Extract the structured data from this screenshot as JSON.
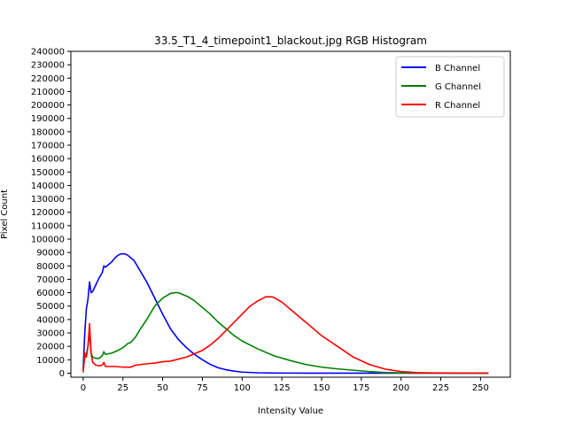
{
  "chart_data": {
    "type": "line",
    "title": "33.5_T1_4_timepoint1_blackout.jpg RGB Histogram",
    "xlabel": "Intensity Value",
    "ylabel": "Pixel Count",
    "xlim": [
      -7.75,
      268.75
    ],
    "ylim": [
      -3000,
      240000
    ],
    "xticks": [
      0,
      25,
      50,
      75,
      100,
      125,
      150,
      175,
      200,
      225,
      250
    ],
    "yticks": [
      0,
      10000,
      20000,
      30000,
      40000,
      50000,
      60000,
      70000,
      80000,
      90000,
      100000,
      110000,
      120000,
      130000,
      140000,
      150000,
      160000,
      170000,
      180000,
      190000,
      200000,
      210000,
      220000,
      230000,
      240000
    ],
    "legend_position": "upper right",
    "series": [
      {
        "name": "B Channel",
        "color": "#0000ff",
        "x": [
          0,
          1,
          2,
          3,
          4,
          5,
          6,
          8,
          10,
          12,
          13,
          14,
          16,
          18,
          20,
          22,
          24,
          26,
          28,
          30,
          32,
          35,
          38,
          40,
          45,
          50,
          55,
          60,
          65,
          70,
          75,
          80,
          85,
          90,
          95,
          100,
          110,
          120,
          130,
          140,
          150,
          175,
          200,
          225,
          255
        ],
        "values": [
          3000,
          30000,
          48000,
          55000,
          68000,
          60000,
          61000,
          66000,
          71000,
          75000,
          80000,
          79000,
          81000,
          83000,
          86000,
          88000,
          89000,
          89000,
          88000,
          86000,
          84000,
          78000,
          72000,
          68000,
          56000,
          44000,
          33000,
          25000,
          19000,
          14000,
          10000,
          6500,
          4000,
          2500,
          1500,
          800,
          300,
          100,
          50,
          0,
          0,
          0,
          0,
          0,
          0
        ]
      },
      {
        "name": "G Channel",
        "color": "#008000",
        "x": [
          0,
          1,
          2,
          3,
          4,
          5,
          6,
          8,
          10,
          12,
          13,
          14,
          16,
          18,
          20,
          22,
          25,
          28,
          30,
          33,
          36,
          40,
          45,
          50,
          55,
          58,
          60,
          63,
          66,
          70,
          75,
          80,
          85,
          90,
          95,
          100,
          110,
          120,
          130,
          140,
          150,
          160,
          170,
          180,
          190,
          200,
          210,
          225,
          255
        ],
        "values": [
          2000,
          12000,
          14000,
          20000,
          30000,
          15000,
          12000,
          11000,
          11000,
          13000,
          16000,
          14000,
          14500,
          15000,
          16000,
          17000,
          19000,
          22000,
          23000,
          27000,
          33000,
          40000,
          50000,
          56000,
          59500,
          60000,
          60000,
          58500,
          57000,
          54000,
          49000,
          44000,
          38000,
          33000,
          28000,
          24000,
          18000,
          13000,
          9500,
          6500,
          4500,
          3200,
          2200,
          1200,
          500,
          200,
          100,
          50,
          0
        ]
      },
      {
        "name": "R Channel",
        "color": "#ff0000",
        "x": [
          0,
          1,
          2,
          3,
          4,
          5,
          6,
          8,
          10,
          12,
          13,
          14,
          16,
          20,
          25,
          30,
          33,
          40,
          45,
          50,
          55,
          60,
          65,
          70,
          75,
          80,
          85,
          90,
          95,
          100,
          105,
          110,
          115,
          118,
          120,
          125,
          130,
          140,
          150,
          155,
          160,
          170,
          180,
          190,
          200,
          210,
          220,
          255
        ],
        "values": [
          500,
          15000,
          12000,
          20000,
          37000,
          15000,
          8000,
          6000,
          5500,
          6000,
          8000,
          5000,
          5000,
          5000,
          4500,
          4500,
          6000,
          7000,
          7500,
          8500,
          9000,
          10500,
          12000,
          14500,
          17000,
          21000,
          26000,
          32000,
          38000,
          44000,
          50000,
          54000,
          57000,
          57000,
          56500,
          53000,
          48000,
          38000,
          28000,
          24000,
          20000,
          12000,
          6500,
          3000,
          1200,
          400,
          200,
          0
        ]
      }
    ]
  }
}
